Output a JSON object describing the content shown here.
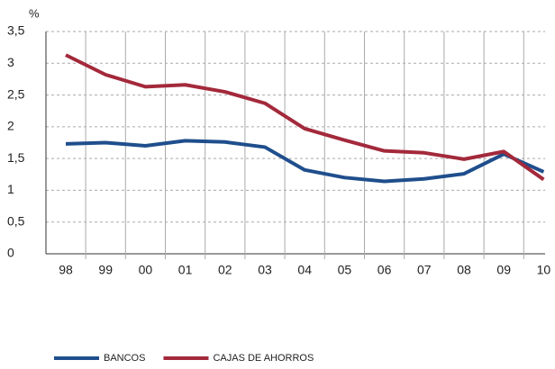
{
  "chart_data": {
    "type": "line",
    "y_label": "%",
    "categories": [
      "98",
      "99",
      "00",
      "01",
      "02",
      "03",
      "04",
      "05",
      "06",
      "07",
      "08",
      "09",
      "10"
    ],
    "series": [
      {
        "name": "BANCOS",
        "color": "#1f4e8c",
        "values": [
          1.73,
          1.75,
          1.7,
          1.78,
          1.76,
          1.68,
          1.32,
          1.2,
          1.14,
          1.18,
          1.26,
          1.57,
          1.29
        ]
      },
      {
        "name": "CAJAS DE AHORROS",
        "color": "#a3293b",
        "values": [
          3.13,
          2.82,
          2.63,
          2.66,
          2.55,
          2.37,
          1.97,
          1.79,
          1.62,
          1.59,
          1.49,
          1.61,
          1.17
        ]
      }
    ],
    "ylim": [
      0,
      3.5
    ],
    "yticks": [
      0,
      {
        "value": 0.5,
        "label": "0,5"
      },
      1,
      {
        "value": 1.5,
        "label": "1,5"
      },
      2,
      {
        "value": 2.5,
        "label": "2,5"
      },
      3,
      {
        "value": 3.5,
        "label": "3,5"
      }
    ],
    "grid": true,
    "legend": "bottom"
  }
}
